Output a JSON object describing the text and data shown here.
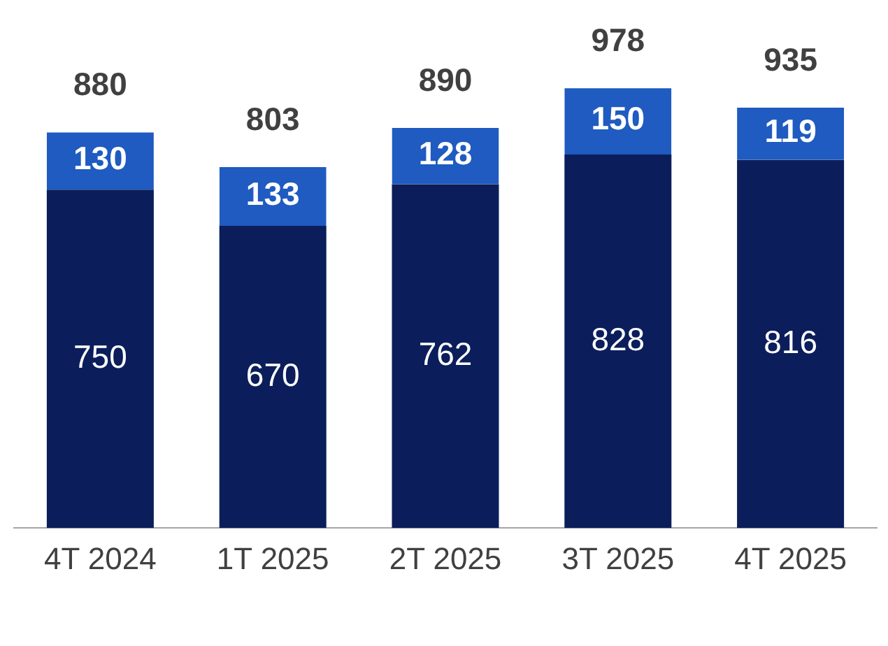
{
  "chart_data": {
    "type": "bar",
    "stacked": true,
    "categories": [
      "4T 2024",
      "1T 2025",
      "2T 2025",
      "3T 2025",
      "4T 2025"
    ],
    "series": [
      {
        "color": "#0b1e5b",
        "values": [
          750,
          670,
          762,
          828,
          816
        ]
      },
      {
        "color": "#1f5bc0",
        "values": [
          130,
          133,
          128,
          150,
          119
        ]
      }
    ],
    "data_labels": true,
    "totals": [
      "880",
      "803",
      "890",
      "978",
      "935"
    ],
    "legend": false,
    "grid": false
  }
}
